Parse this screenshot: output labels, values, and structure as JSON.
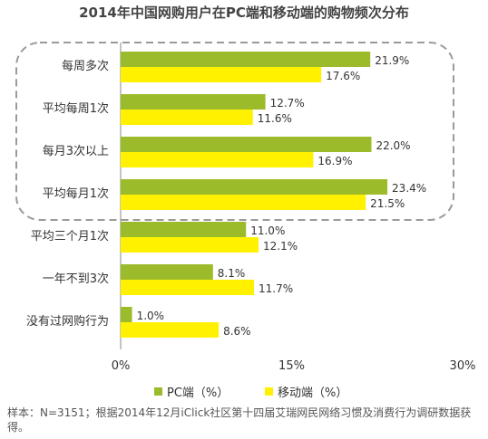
{
  "chart_data": {
    "type": "bar",
    "orientation": "horizontal",
    "title": "2014年中国网购用户在PC端和移动端的购物频次分布",
    "categories": [
      "每周多次",
      "平均每周1次",
      "每月3次以上",
      "平均每月1次",
      "平均三个月1次",
      "一年不到3次",
      "没有过网购行为"
    ],
    "series": [
      {
        "name": "PC端（%）",
        "color": "#9BBB2B",
        "values": [
          21.9,
          12.7,
          22.0,
          23.4,
          11.0,
          8.1,
          1.0
        ]
      },
      {
        "name": "移动端（%）",
        "color": "#FFF100",
        "values": [
          17.6,
          11.6,
          16.9,
          21.5,
          12.1,
          11.7,
          8.6
        ]
      }
    ],
    "value_labels": [
      [
        "21.9%",
        "12.7%",
        "22.0%",
        "23.4%",
        "11.0%",
        "8.1%",
        "1.0%"
      ],
      [
        "17.6%",
        "11.6%",
        "16.9%",
        "21.5%",
        "12.1%",
        "11.7%",
        "8.6%"
      ]
    ],
    "xlim": [
      0,
      30
    ],
    "xticks": [
      "0%",
      "15%",
      "30%"
    ],
    "grid": false,
    "legend_position": "bottom",
    "highlight_group": [
      "每周多次",
      "平均每周1次",
      "每月3次以上",
      "平均每月1次"
    ]
  },
  "footnote": "样本：N=3151；根据2014年12月iClick社区第十四届艾瑞网民网络习惯及消费行为调研数据获得。"
}
